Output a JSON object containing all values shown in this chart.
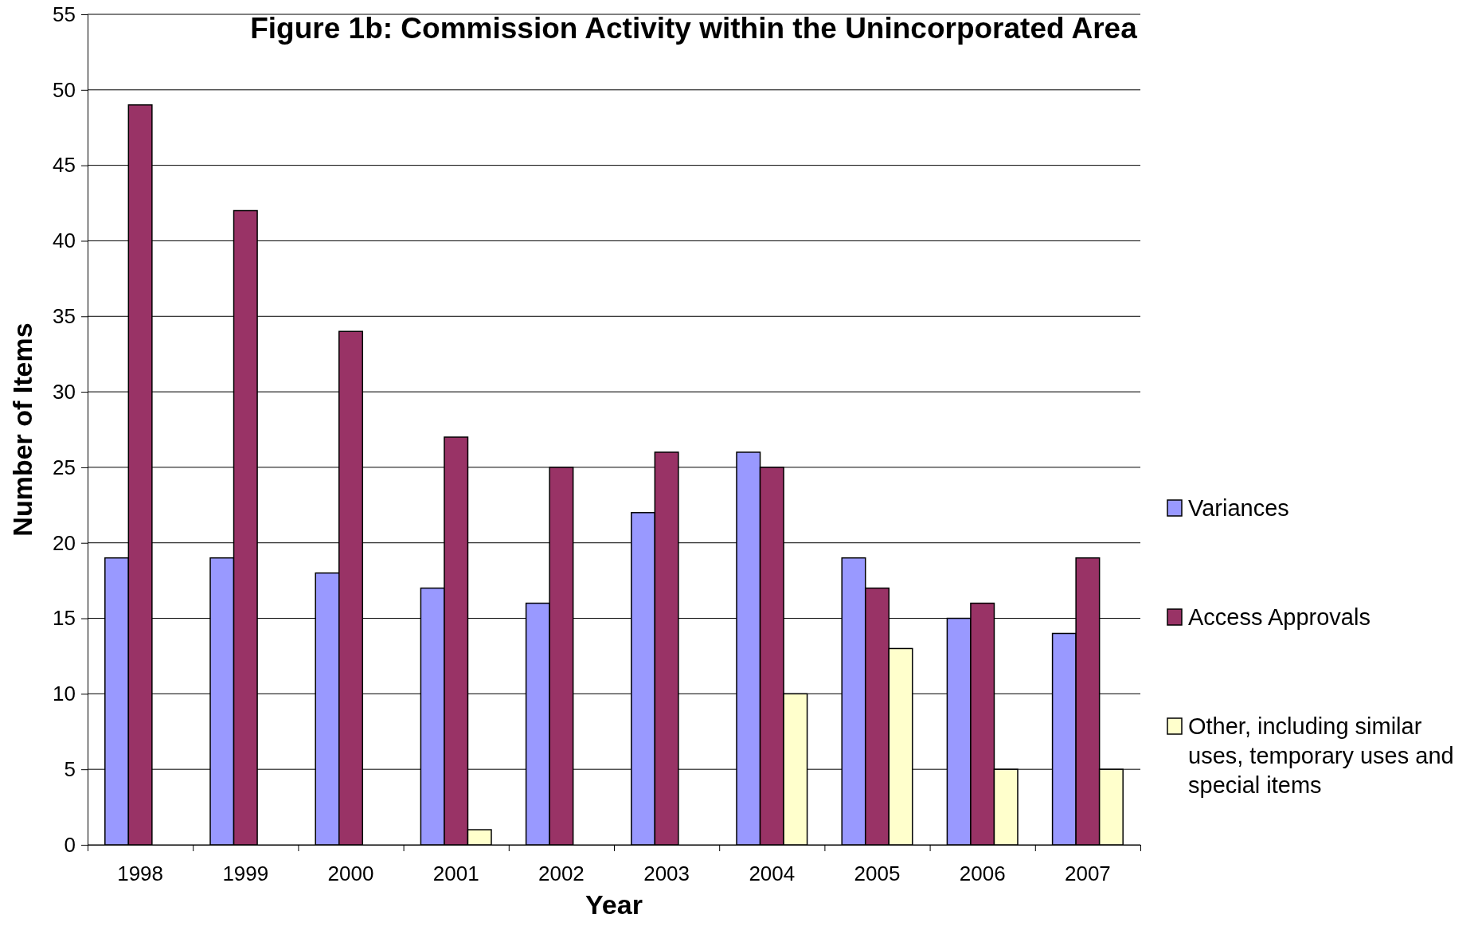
{
  "chart_data": {
    "type": "bar",
    "title": "Figure 1b: Commission Activity within the Unincorporated Area",
    "xlabel": "Year",
    "ylabel": "Number of Items",
    "categories": [
      "1998",
      "1999",
      "2000",
      "2001",
      "2002",
      "2003",
      "2004",
      "2005",
      "2006",
      "2007"
    ],
    "series": [
      {
        "name": "Variances",
        "color": "#9999ff",
        "values": [
          19,
          19,
          18,
          17,
          16,
          22,
          26,
          19,
          15,
          14
        ]
      },
      {
        "name": "Access Approvals",
        "color": "#993366",
        "values": [
          49,
          42,
          34,
          27,
          25,
          26,
          25,
          17,
          16,
          19
        ]
      },
      {
        "name": "Other, including similar uses, temporary uses and special items",
        "color": "#ffffcc",
        "values": [
          0,
          0,
          0,
          1,
          0,
          0,
          10,
          13,
          5,
          5
        ]
      }
    ],
    "ylim": [
      0,
      55
    ],
    "yticks": [
      0,
      5,
      10,
      15,
      20,
      25,
      30,
      35,
      40,
      45,
      50,
      55
    ],
    "grid": "y",
    "legend": "right"
  }
}
